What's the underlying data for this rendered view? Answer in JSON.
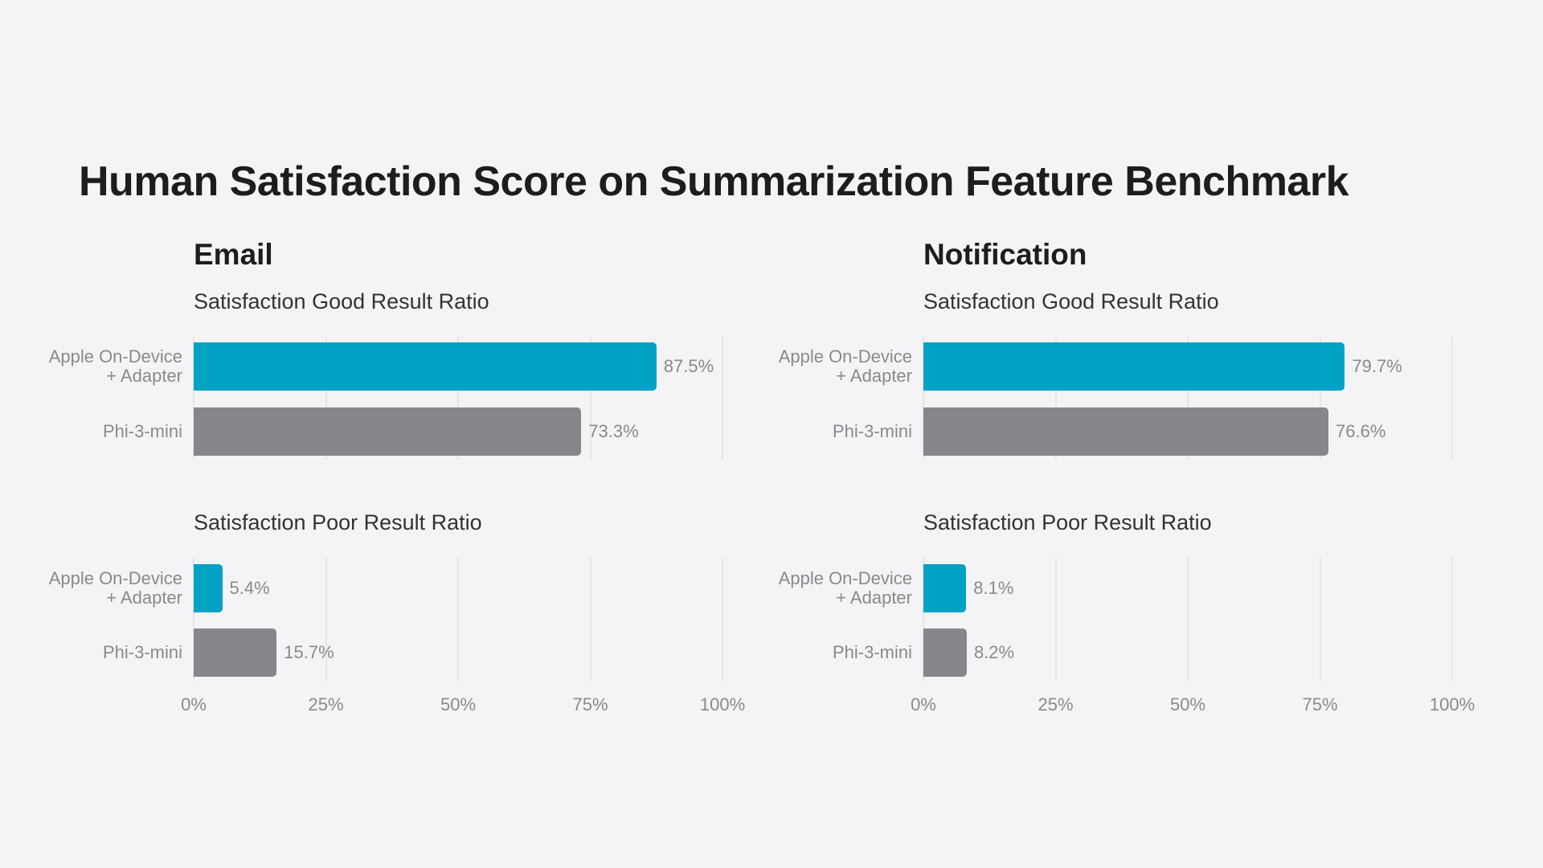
{
  "title": "Human Satisfaction Score on Summarization Feature Benchmark",
  "chart_data": [
    {
      "type": "bar",
      "orientation": "horizontal",
      "title": "Email",
      "categories": [
        "Apple On-Device\n+ Adapter",
        "Phi-3-mini"
      ],
      "colors": [
        "#00a3c4",
        "#86868b"
      ],
      "subcharts": [
        {
          "subtitle": "Satisfaction Good Result Ratio",
          "values": [
            87.5,
            73.3
          ],
          "value_labels": [
            "87.5%",
            "73.3%"
          ]
        },
        {
          "subtitle": "Satisfaction Poor Result Ratio",
          "values": [
            5.4,
            15.7
          ],
          "value_labels": [
            "5.4%",
            "15.7%"
          ]
        }
      ],
      "xlim": [
        0,
        100
      ],
      "xticks": [
        {
          "value": 0,
          "label": "0%"
        },
        {
          "value": 25,
          "label": "25%"
        },
        {
          "value": 50,
          "label": "50%"
        },
        {
          "value": 75,
          "label": "75%"
        },
        {
          "value": 100,
          "label": "100%"
        }
      ],
      "grid": true
    },
    {
      "type": "bar",
      "orientation": "horizontal",
      "title": "Notification",
      "categories": [
        "Apple On-Device\n+ Adapter",
        "Phi-3-mini"
      ],
      "colors": [
        "#00a3c4",
        "#86868b"
      ],
      "subcharts": [
        {
          "subtitle": "Satisfaction Good Result Ratio",
          "values": [
            79.7,
            76.6
          ],
          "value_labels": [
            "79.7%",
            "76.6%"
          ]
        },
        {
          "subtitle": "Satisfaction Poor Result Ratio",
          "values": [
            8.1,
            8.2
          ],
          "value_labels": [
            "8.1%",
            "8.2%"
          ]
        }
      ],
      "xlim": [
        0,
        100
      ],
      "xticks": [
        {
          "value": 0,
          "label": "0%"
        },
        {
          "value": 25,
          "label": "25%"
        },
        {
          "value": 50,
          "label": "50%"
        },
        {
          "value": 75,
          "label": "75%"
        },
        {
          "value": 100,
          "label": "100%"
        }
      ],
      "grid": true
    }
  ]
}
